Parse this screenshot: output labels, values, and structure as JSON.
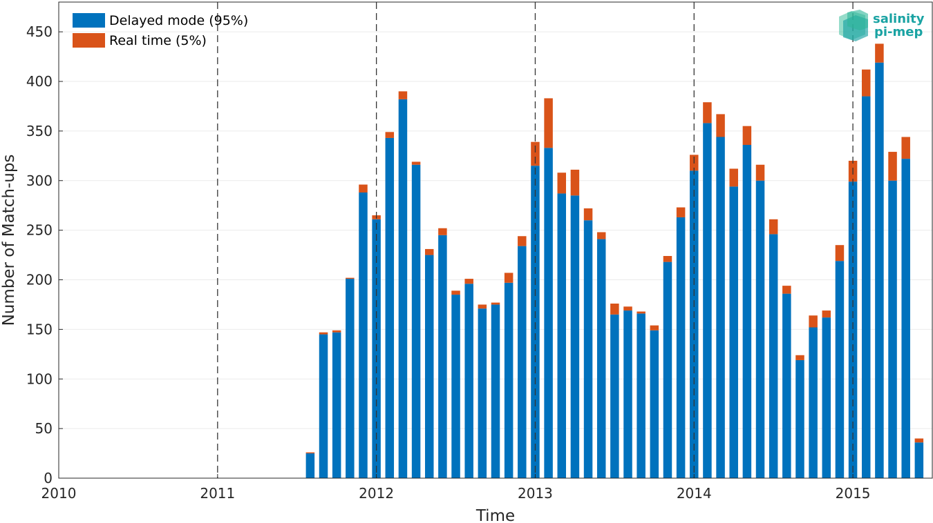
{
  "chart_data": {
    "type": "bar",
    "stacked": true,
    "title": "",
    "xlabel": "Time",
    "ylabel": "Number of Match-ups",
    "xlim": [
      2010,
      2015.5
    ],
    "ylim": [
      0,
      480
    ],
    "x_ticks": [
      2010,
      2011,
      2012,
      2013,
      2014,
      2015
    ],
    "x_tick_labels": [
      "2010",
      "2011",
      "2012",
      "2013",
      "2014",
      "2015"
    ],
    "y_ticks": [
      0,
      50,
      100,
      150,
      200,
      250,
      300,
      350,
      400,
      450
    ],
    "y_tick_labels": [
      "0",
      "50",
      "100",
      "150",
      "200",
      "250",
      "300",
      "350",
      "400",
      "450"
    ],
    "year_separators": [
      2011,
      2012,
      2013,
      2014,
      2015
    ],
    "grid": true,
    "legend_position": "top-left",
    "months": [
      "2011-08",
      "2011-09",
      "2011-10",
      "2011-11",
      "2011-12",
      "2012-01",
      "2012-02",
      "2012-03",
      "2012-04",
      "2012-05",
      "2012-06",
      "2012-07",
      "2012-08",
      "2012-09",
      "2012-10",
      "2012-11",
      "2012-12",
      "2013-01",
      "2013-02",
      "2013-03",
      "2013-04",
      "2013-05",
      "2013-06",
      "2013-07",
      "2013-08",
      "2013-09",
      "2013-10",
      "2013-11",
      "2013-12",
      "2014-01",
      "2014-02",
      "2014-03",
      "2014-04",
      "2014-05",
      "2014-06",
      "2014-07",
      "2014-08",
      "2014-09",
      "2014-10",
      "2014-11",
      "2014-12",
      "2015-01",
      "2015-02",
      "2015-03",
      "2015-04",
      "2015-05",
      "2015-06"
    ],
    "series": [
      {
        "name": "Delayed mode (95%)",
        "color": "#0072bd",
        "values": [
          25,
          145,
          147,
          201,
          288,
          261,
          343,
          382,
          316,
          225,
          245,
          185,
          196,
          171,
          175,
          197,
          234,
          315,
          333,
          287,
          285,
          260,
          241,
          165,
          169,
          166,
          149,
          218,
          263,
          310,
          358,
          344,
          294,
          336,
          300,
          246,
          186,
          119,
          152,
          162,
          219,
          299,
          385,
          419,
          300,
          322,
          36
        ]
      },
      {
        "name": "Real time (5%)",
        "color": "#d95319",
        "values": [
          1,
          2,
          2,
          1,
          8,
          4,
          6,
          8,
          3,
          6,
          7,
          4,
          5,
          4,
          2,
          10,
          10,
          24,
          50,
          21,
          26,
          12,
          7,
          11,
          4,
          2,
          5,
          6,
          10,
          16,
          21,
          23,
          18,
          19,
          16,
          15,
          8,
          5,
          12,
          7,
          16,
          21,
          27,
          19,
          29,
          22,
          4
        ]
      }
    ]
  },
  "logo": {
    "line1": "salinity",
    "line2": "pi-mep",
    "color": "#1aa3a3"
  }
}
